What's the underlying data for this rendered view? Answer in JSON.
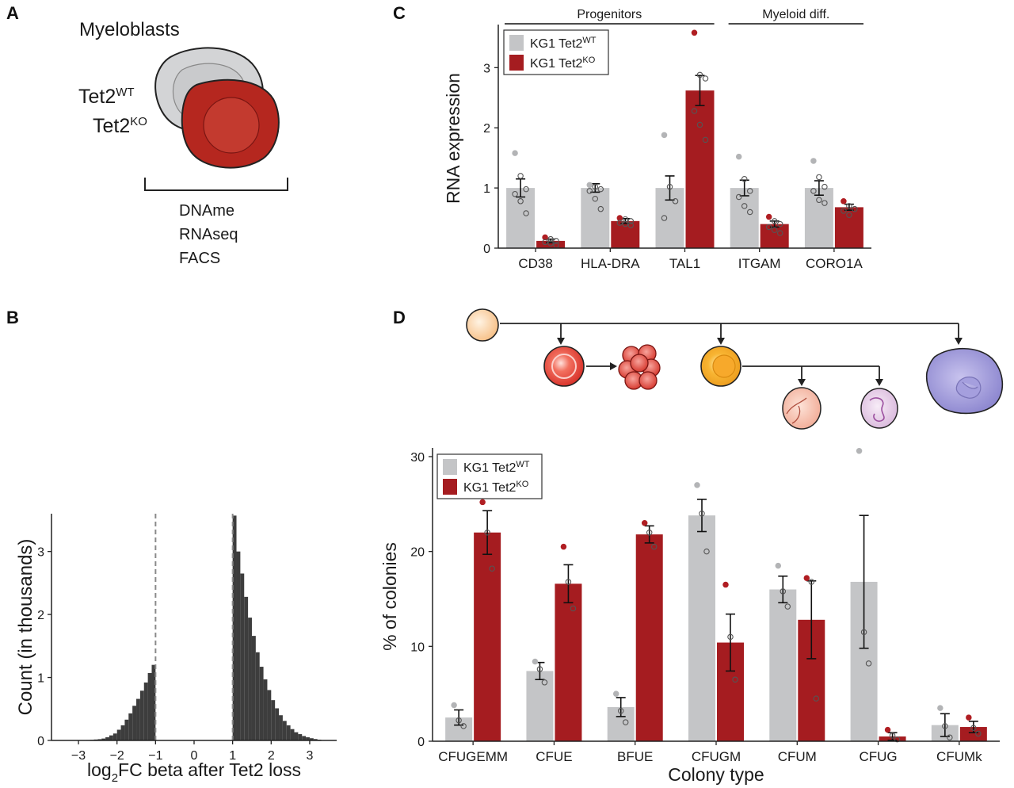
{
  "panels": {
    "a": {
      "label": "A",
      "title": "Myeloblasts",
      "wt_base": "Tet2",
      "wt_sup": "WT",
      "ko_base": "Tet2",
      "ko_sup": "KO",
      "assays": [
        "DNAme",
        "RNAseq",
        "FACS"
      ]
    },
    "b": {
      "label": "B"
    },
    "c": {
      "label": "C"
    },
    "d": {
      "label": "D"
    }
  },
  "colors": {
    "wt": "#c4c5c7",
    "ko": "#a51c20",
    "wt_dot": "#b3b4b6",
    "ko_dot": "#b01e23",
    "hist": "#3d3d3d",
    "dash": "#8a8a8a"
  },
  "chart_data": [
    {
      "id": "panel-b",
      "type": "bar",
      "title": "",
      "xlabel_prefix": "log",
      "xlabel_sub": "2",
      "xlabel_rest": "FC beta after Tet2 loss",
      "ylabel": "Count (in thousands)",
      "xlim": [
        -3.7,
        3.7
      ],
      "ylim": [
        0,
        3.6
      ],
      "xticks": [
        -3,
        -2,
        -1,
        0,
        1,
        2,
        3
      ],
      "yticks": [
        0,
        1,
        2,
        3
      ],
      "threshold_lines": [
        -1,
        1
      ],
      "bin_width": 0.1,
      "bin_starts": [
        -3.0,
        -2.9,
        -2.8,
        -2.7,
        -2.6,
        -2.5,
        -2.4,
        -2.3,
        -2.2,
        -2.1,
        -2.0,
        -1.9,
        -1.8,
        -1.7,
        -1.6,
        -1.5,
        -1.4,
        -1.3,
        -1.2,
        -1.1,
        1.0,
        1.1,
        1.2,
        1.3,
        1.4,
        1.5,
        1.6,
        1.7,
        1.8,
        1.9,
        2.0,
        2.1,
        2.2,
        2.3,
        2.4,
        2.5,
        2.6,
        2.7,
        2.8,
        2.9,
        3.0,
        3.1,
        3.2,
        3.3
      ],
      "counts": [
        0.003,
        0.005,
        0.007,
        0.01,
        0.015,
        0.02,
        0.03,
        0.05,
        0.08,
        0.11,
        0.17,
        0.24,
        0.33,
        0.43,
        0.55,
        0.66,
        0.79,
        0.92,
        1.07,
        1.2,
        3.57,
        3.0,
        2.65,
        2.28,
        1.95,
        1.66,
        1.4,
        1.17,
        0.97,
        0.8,
        0.64,
        0.51,
        0.4,
        0.31,
        0.24,
        0.18,
        0.13,
        0.1,
        0.07,
        0.05,
        0.035,
        0.022,
        0.012,
        0.006
      ]
    },
    {
      "id": "panel-c",
      "type": "bar",
      "title": "",
      "xlabel": "",
      "ylabel": "RNA expression",
      "ylim": [
        0,
        3.65
      ],
      "yticks": [
        0,
        1,
        2,
        3
      ],
      "categories": [
        "CD38",
        "HLA-DRA",
        "TAL1",
        "ITGAM",
        "CORO1A"
      ],
      "groups": [
        {
          "label": "Progenitors",
          "from": 0,
          "to": 2
        },
        {
          "label": "Myeloid diff.",
          "from": 3,
          "to": 4
        }
      ],
      "legend_position": "top-left",
      "series": [
        {
          "name": "KG1 Tet2",
          "sup": "WT",
          "values": [
            1.0,
            1.0,
            1.0,
            1.0,
            1.0
          ],
          "err": [
            0.15,
            0.07,
            0.2,
            0.13,
            0.12
          ],
          "points": [
            [
              1.58,
              1.2,
              0.98,
              0.9,
              0.78,
              0.58
            ],
            [
              1.05,
              1.02,
              0.98,
              0.95,
              0.82,
              0.65
            ],
            [
              1.88,
              1.02,
              0.78,
              0.5
            ],
            [
              1.52,
              1.15,
              0.95,
              0.85,
              0.7,
              0.6
            ],
            [
              1.45,
              1.18,
              1.02,
              0.95,
              0.8,
              0.75
            ]
          ]
        },
        {
          "name": "KG1 Tet2",
          "sup": "KO",
          "values": [
            0.12,
            0.45,
            2.62,
            0.4,
            0.68
          ],
          "err": [
            0.03,
            0.04,
            0.25,
            0.05,
            0.05
          ],
          "points": [
            [
              0.18,
              0.15,
              0.12,
              0.1,
              0.08,
              0.05
            ],
            [
              0.5,
              0.48,
              0.45,
              0.42,
              0.4,
              0.38
            ],
            [
              3.58,
              2.88,
              2.82,
              2.28,
              2.05,
              1.8
            ],
            [
              0.52,
              0.45,
              0.4,
              0.35,
              0.3,
              0.25
            ],
            [
              0.78,
              0.7,
              0.65,
              0.62,
              0.55
            ]
          ]
        }
      ]
    },
    {
      "id": "panel-d",
      "type": "bar",
      "title": "",
      "xlabel": "Colony type",
      "ylabel": "% of colonies",
      "ylim": [
        0,
        30.5
      ],
      "yticks": [
        0,
        10,
        20,
        30
      ],
      "categories": [
        "CFUGEMM",
        "CFUE",
        "BFUE",
        "CFUGM",
        "CFUM",
        "CFUG",
        "CFUMk"
      ],
      "legend_position": "top-left",
      "series": [
        {
          "name": "KG1 Tet2",
          "sup": "WT",
          "values": [
            2.5,
            7.4,
            3.6,
            23.8,
            16.0,
            16.8,
            1.7
          ],
          "err": [
            0.8,
            0.9,
            1.0,
            1.7,
            1.4,
            7.0,
            1.2
          ],
          "points": [
            [
              3.8,
              2.2,
              1.6
            ],
            [
              8.4,
              7.6,
              6.2
            ],
            [
              5.0,
              3.2,
              2.0
            ],
            [
              27.0,
              24.0,
              20.0
            ],
            [
              18.5,
              15.8,
              14.2
            ],
            [
              30.6,
              11.5,
              8.2
            ],
            [
              3.5,
              1.6,
              0.4
            ]
          ]
        },
        {
          "name": "KG1 Tet2",
          "sup": "KO",
          "values": [
            22.0,
            16.6,
            21.8,
            10.4,
            12.8,
            0.5,
            1.5
          ],
          "err": [
            2.3,
            2.0,
            0.9,
            3.0,
            4.1,
            0.4,
            0.6
          ],
          "points": [
            [
              25.2,
              22.0,
              18.2
            ],
            [
              20.5,
              16.8,
              14.0
            ],
            [
              23.0,
              22.0,
              20.5
            ],
            [
              16.5,
              11.0,
              6.5
            ],
            [
              17.2,
              16.8,
              4.5
            ],
            [
              1.2,
              0.6,
              0.2
            ],
            [
              2.5,
              1.4,
              0.8
            ]
          ]
        }
      ]
    }
  ]
}
